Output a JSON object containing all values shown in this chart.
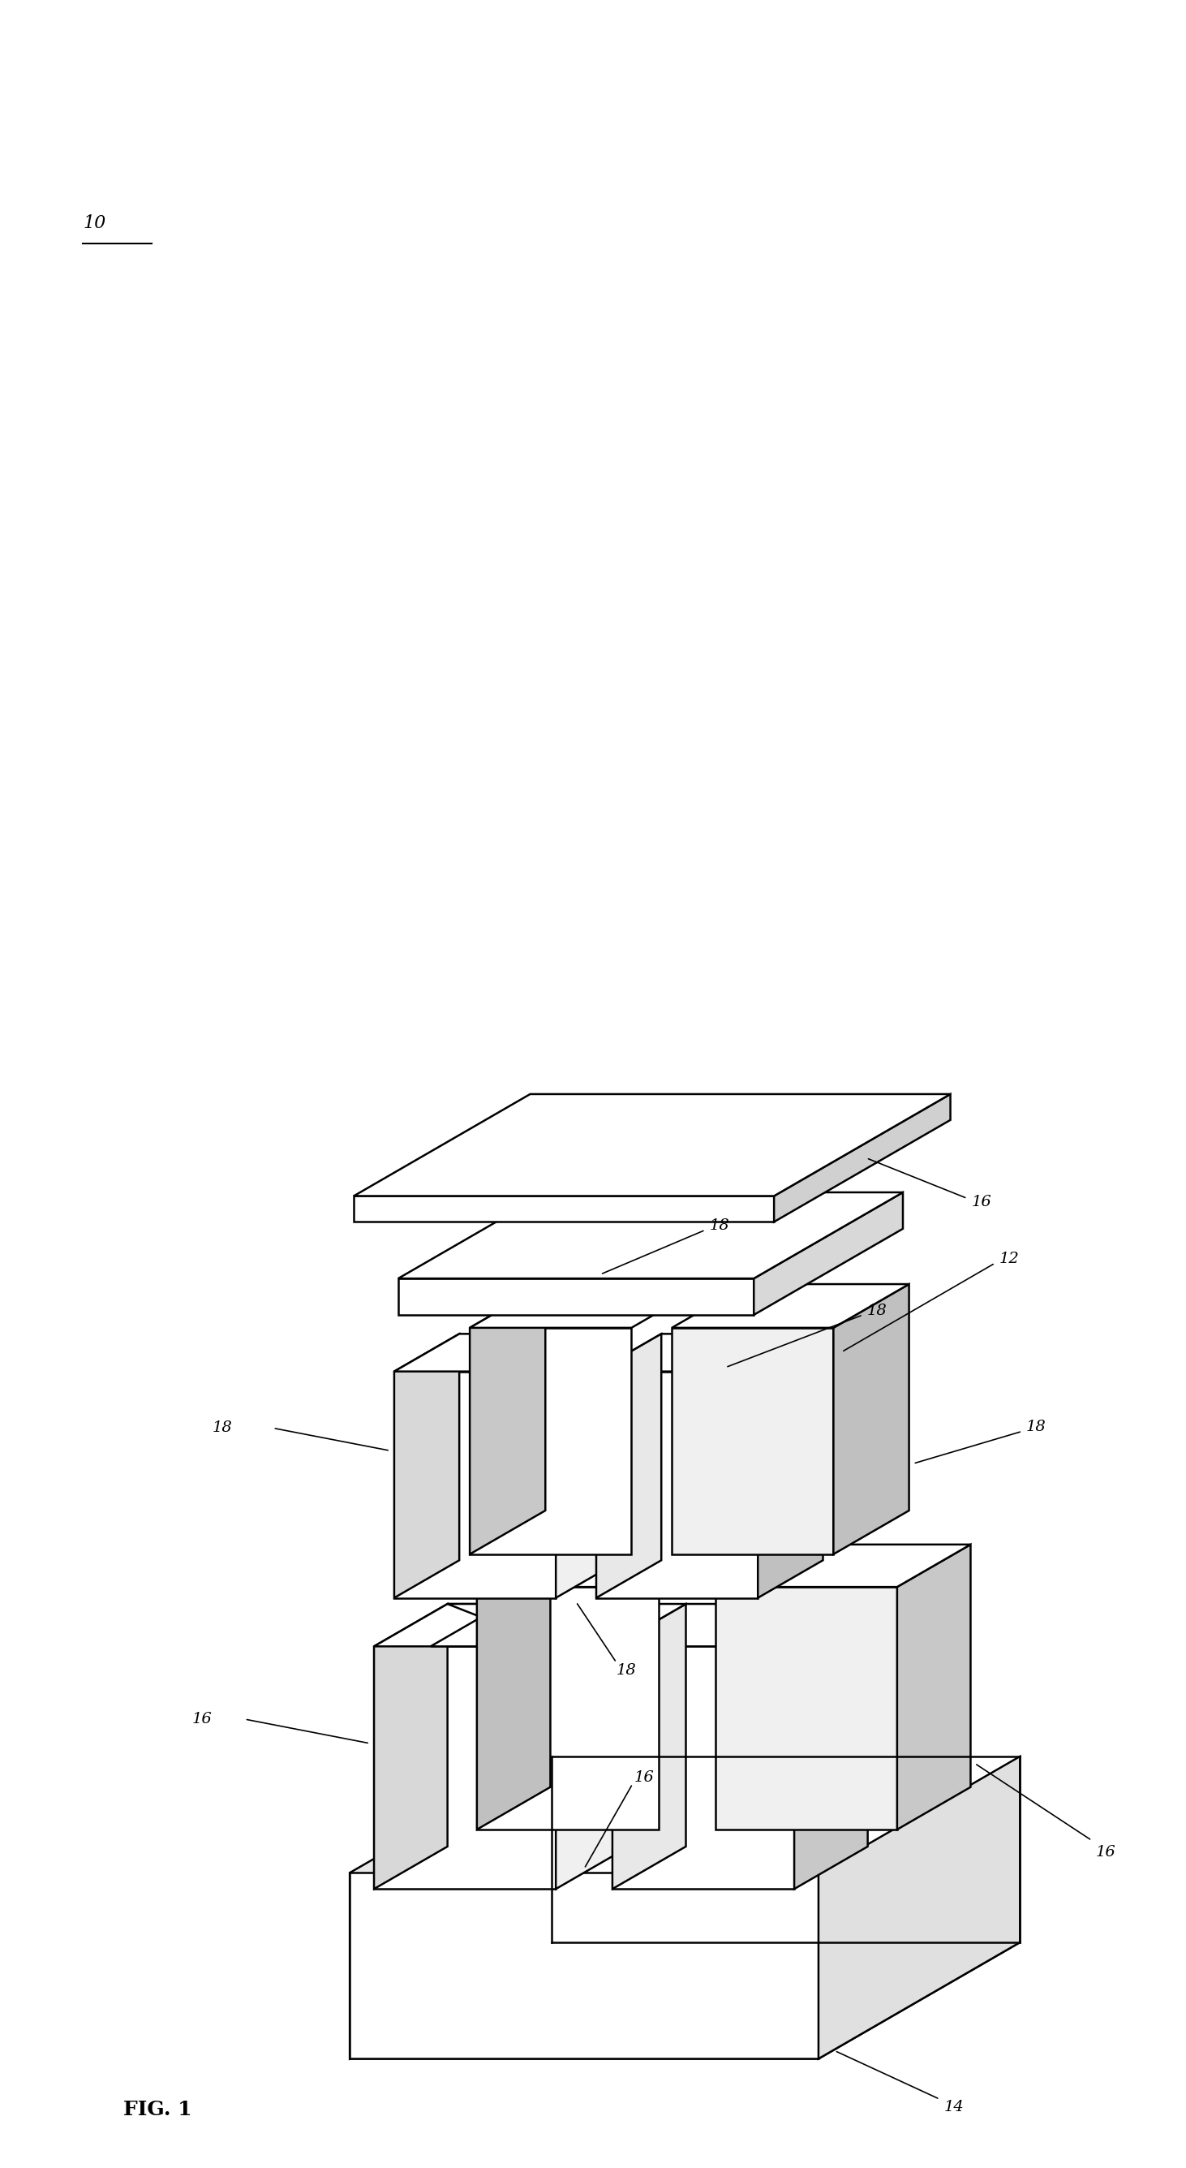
{
  "background_color": "#ffffff",
  "line_color": "#000000",
  "line_width": 1.8,
  "fig_label": "FIG. 1",
  "ref_10": "10",
  "ref_12": "12",
  "ref_14": "14",
  "ref_16": "16",
  "ref_18": "18",
  "label_fontsize": 14,
  "fig_label_fontsize": 18
}
